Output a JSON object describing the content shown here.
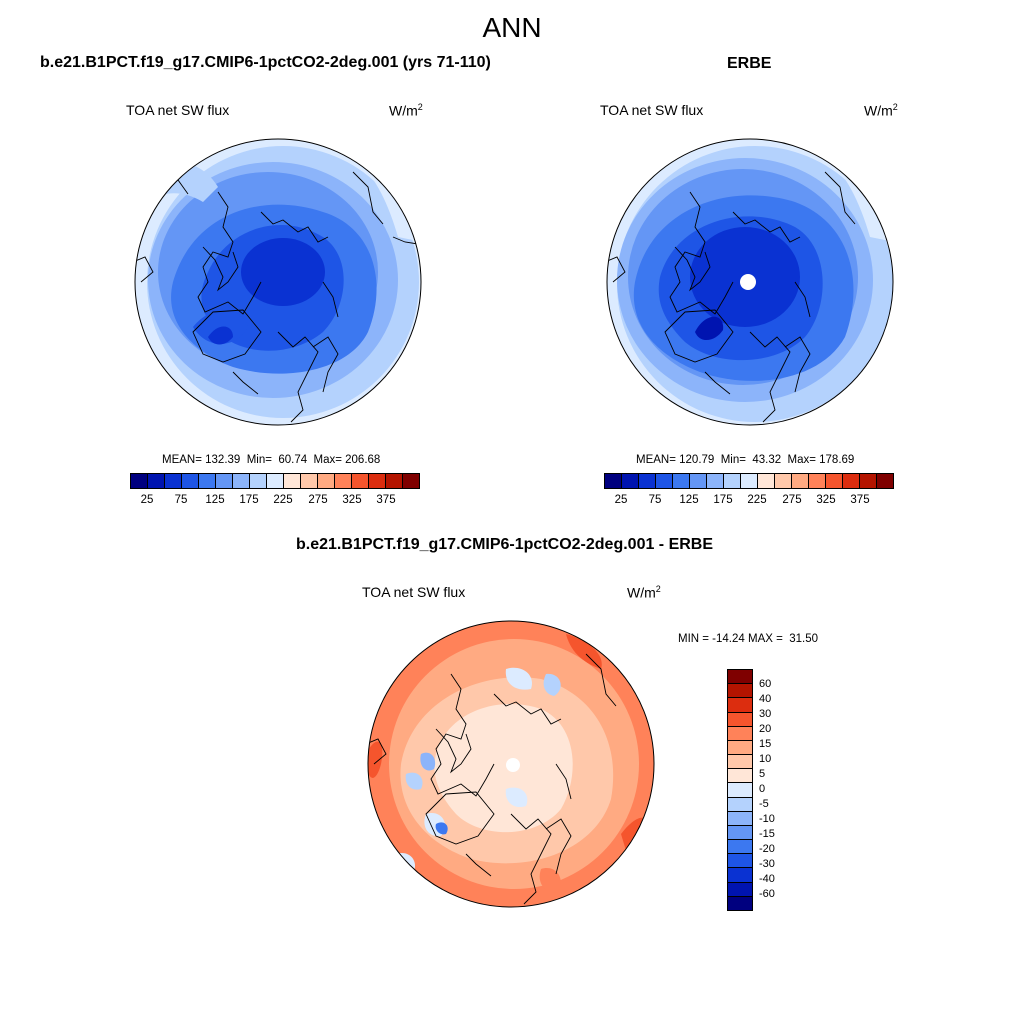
{
  "main_title": "ANN",
  "panel_left": {
    "title": "b.e21.B1PCT.f19_g17.CMIP6-1pctCO2-2deg.001 (yrs 71-110)",
    "variable": "TOA net SW flux",
    "units_base": "W/m",
    "units_exp": "2",
    "stats": "MEAN= 132.39  Min=  60.74  Max= 206.68"
  },
  "panel_right": {
    "title": "ERBE",
    "variable": "TOA net SW flux",
    "units_base": "W/m",
    "units_exp": "2",
    "stats": "MEAN= 120.79  Min=  43.32  Max= 178.69"
  },
  "panel_diff": {
    "title": "b.e21.B1PCT.f19_g17.CMIP6-1pctCO2-2deg.001 - ERBE",
    "variable": "TOA net SW flux",
    "units_base": "W/m",
    "units_exp": "2",
    "minmax": "MIN = -14.24 MAX =  31.50"
  },
  "flux_colorbar": {
    "colors": [
      "#00007f",
      "#0014b0",
      "#0a32d2",
      "#1e55e6",
      "#3c78f0",
      "#6496f5",
      "#8cb4fa",
      "#b4d2fd",
      "#dcebff",
      "#ffe6d7",
      "#ffc8aa",
      "#ffaa82",
      "#ff8259",
      "#f5552d",
      "#dc2d0f",
      "#b41400",
      "#7f0000"
    ],
    "tick_labels": [
      "25",
      "75",
      "125",
      "175",
      "225",
      "275",
      "325",
      "375"
    ]
  },
  "diff_colorbar": {
    "colors": [
      "#7f0000",
      "#b41400",
      "#dc2d0f",
      "#f5552d",
      "#ff8259",
      "#ffaa82",
      "#ffc8aa",
      "#ffe6d7",
      "#dcebff",
      "#b4d2fd",
      "#8cb4fa",
      "#6496f5",
      "#3c78f0",
      "#1e55e6",
      "#0a32d2",
      "#0014b0",
      "#00007f"
    ],
    "tick_labels": [
      "60",
      "40",
      "30",
      "20",
      "15",
      "10",
      "5",
      "0",
      "-5",
      "-10",
      "-15",
      "-20",
      "-30",
      "-40",
      "-60"
    ]
  }
}
